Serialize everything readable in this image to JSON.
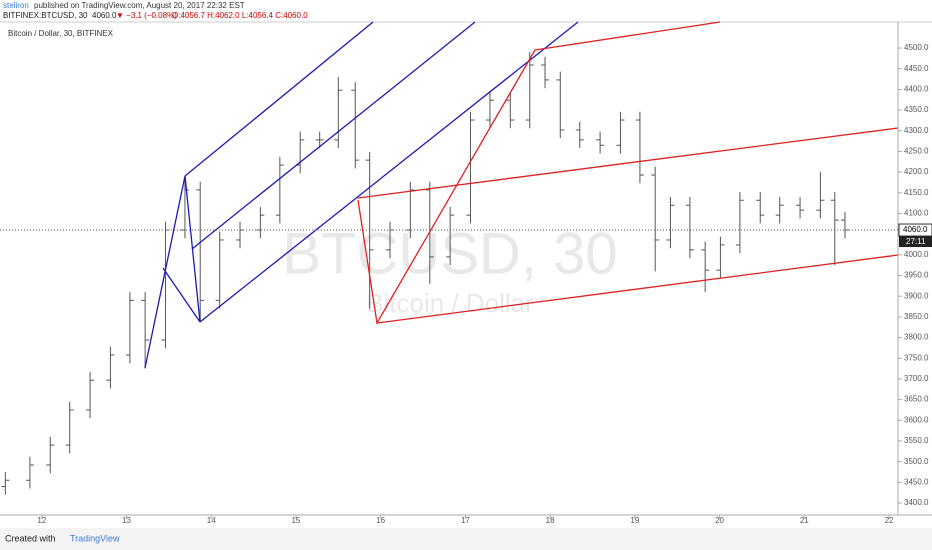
{
  "header": {
    "author": "steliron",
    "published": "published on TradingView.com, August 20, 2017 22:32 EST",
    "symbol": "BITFINEX:BTCUSD, 30",
    "price": "4060.0",
    "change": "▼ −3.1 (−0.08%)",
    "ohlc": "O:4056.7 H:4062.0 L:4056.4 C:4060.0"
  },
  "footer": {
    "created": "Created with",
    "brand": "TradingView"
  },
  "chart_data": {
    "type": "ohlc",
    "legend": "Bitcoin / Dollar, 30, BITFINEX",
    "watermark": "BTCUSD, 30",
    "watermark_sub": "Bitcoin / Dollar",
    "color": "#555555",
    "x": [
      11.57,
      11.86,
      12.1,
      12.33,
      12.57,
      12.81,
      13.04,
      13.22,
      13.46,
      13.69,
      13.87,
      14.1,
      14.34,
      14.58,
      14.81,
      15.05,
      15.28,
      15.5,
      15.7,
      15.87,
      16.11,
      16.35,
      16.58,
      16.82,
      17.06,
      17.29,
      17.53,
      17.76,
      17.94,
      18.12,
      18.35,
      18.59,
      18.83,
      19.06,
      19.24,
      19.42,
      19.65,
      19.83,
      20.01,
      20.24,
      20.48,
      20.71,
      20.95,
      21.19,
      21.36,
      21.48
    ],
    "open": [
      3440,
      3455,
      3492,
      3540,
      3625,
      3697,
      3758,
      3890,
      3794,
      4060,
      4157,
      3890,
      4036,
      4060,
      4096,
      4217,
      4278,
      4278,
      4398,
      4229,
      4012,
      4060,
      4157,
      3995,
      4096,
      4326,
      4374,
      4326,
      4459,
      4423,
      4302,
      4278,
      4265,
      4326,
      4193,
      4036,
      4120,
      4012,
      3963,
      4024,
      4132,
      4096,
      4120,
      4108,
      4132,
      4084
    ],
    "high": [
      3475,
      3512,
      3560,
      3645,
      3717,
      3778,
      3910,
      3910,
      4080,
      4190,
      4177,
      4056,
      4080,
      4116,
      4237,
      4298,
      4298,
      4430,
      4418,
      4249,
      4080,
      4177,
      4177,
      4116,
      4346,
      4394,
      4394,
      4490,
      4479,
      4443,
      4322,
      4298,
      4346,
      4346,
      4213,
      4140,
      4140,
      4032,
      4044,
      4152,
      4152,
      4140,
      4140,
      4200,
      4152,
      4104
    ],
    "low": [
      3420,
      3435,
      3472,
      3520,
      3605,
      3677,
      3738,
      3725,
      3774,
      4040,
      3840,
      3870,
      4016,
      4040,
      4076,
      4197,
      4258,
      4258,
      4209,
      3870,
      3992,
      4040,
      3930,
      3975,
      4076,
      4306,
      4306,
      4306,
      4403,
      4282,
      4258,
      4245,
      4245,
      4173,
      3960,
      4016,
      3992,
      3910,
      3943,
      4004,
      4076,
      4076,
      4088,
      4088,
      3975,
      4040
    ],
    "close": [
      3455,
      3492,
      3540,
      3625,
      3697,
      3758,
      3890,
      3794,
      4060,
      4157,
      3890,
      4036,
      4060,
      4096,
      4217,
      4278,
      4278,
      4398,
      4229,
      4012,
      4060,
      4157,
      3995,
      4096,
      4326,
      4374,
      4326,
      4459,
      4423,
      4302,
      4278,
      4265,
      4326,
      4193,
      4036,
      4120,
      4012,
      3963,
      4024,
      4132,
      4096,
      4120,
      4108,
      4132,
      4084,
      4060
    ],
    "xlim": [
      11.507,
      22.106
    ],
    "xticks": [
      12,
      13,
      14,
      15,
      16,
      17,
      18,
      19,
      20,
      21,
      22
    ],
    "ylim": [
      3371,
      4563
    ],
    "yticks": [
      {
        "value": 3400,
        "label": "3400.0"
      },
      {
        "value": 3450,
        "label": "3450.0"
      },
      {
        "value": 3500,
        "label": "3500.0"
      },
      {
        "value": 3550,
        "label": "3550.0"
      },
      {
        "value": 3600,
        "label": "3600.0"
      },
      {
        "value": 3650,
        "label": "3650.0"
      },
      {
        "value": 3700,
        "label": "3700.0"
      },
      {
        "value": 3750,
        "label": "3750.0"
      },
      {
        "value": 3800,
        "label": "3800.0"
      },
      {
        "value": 3850,
        "label": "3850.0"
      },
      {
        "value": 3900,
        "label": "3900.0"
      },
      {
        "value": 3950,
        "label": "3950.0"
      },
      {
        "value": 4000,
        "label": "4000.0"
      },
      {
        "value": 4050,
        "label": "4050.0"
      },
      {
        "value": 4100,
        "label": "4100.0"
      },
      {
        "value": 4150,
        "label": "4150.0"
      },
      {
        "value": 4200,
        "label": "4200.0"
      },
      {
        "value": 4250,
        "label": "4250.0"
      },
      {
        "value": 4300,
        "label": "4300.0"
      },
      {
        "value": 4350,
        "label": "4350.0"
      },
      {
        "value": 4400,
        "label": "4400.0"
      },
      {
        "value": 4450,
        "label": "4450.0"
      },
      {
        "value": 4500,
        "label": "4500.0"
      }
    ],
    "last_price": {
      "value": 4060,
      "label": "4060.0"
    },
    "countdown": "27:11"
  }
}
